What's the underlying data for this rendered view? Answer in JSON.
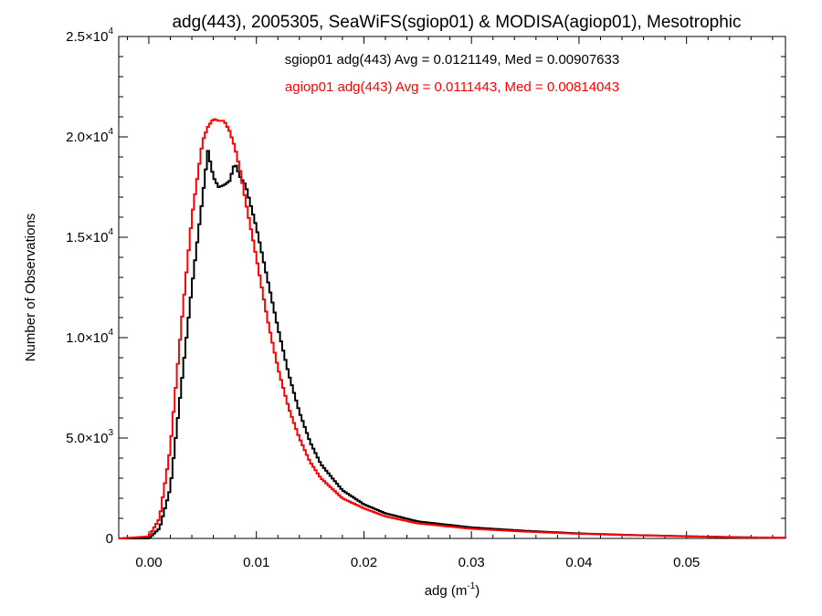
{
  "chart_data": {
    "type": "line",
    "style": "step-histogram",
    "title": "adg(443), 2005305, SeaWiFS(sgiop01) & MODISA(agiop01), Mesotrophic",
    "xlabel": "adg (m",
    "xlabel_exponent": "-1",
    "xlabel_suffix": ")",
    "ylabel": "Number of Observations",
    "xlim": [
      -0.0028,
      0.0592
    ],
    "ylim": [
      0,
      25000
    ],
    "grid": false,
    "x_ticks": [
      {
        "value": 0.0,
        "label": "0.00"
      },
      {
        "value": 0.01,
        "label": "0.01"
      },
      {
        "value": 0.02,
        "label": "0.02"
      },
      {
        "value": 0.03,
        "label": "0.03"
      },
      {
        "value": 0.04,
        "label": "0.04"
      },
      {
        "value": 0.05,
        "label": "0.05"
      }
    ],
    "y_ticks": [
      {
        "value": 0,
        "mantissa": "0",
        "exponent": ""
      },
      {
        "value": 5000,
        "mantissa": "5.0×10",
        "exponent": "3"
      },
      {
        "value": 10000,
        "mantissa": "1.0×10",
        "exponent": "4"
      },
      {
        "value": 15000,
        "mantissa": "1.5×10",
        "exponent": "4"
      },
      {
        "value": 20000,
        "mantissa": "2.0×10",
        "exponent": "4"
      },
      {
        "value": 25000,
        "mantissa": "2.5×10",
        "exponent": "4"
      }
    ],
    "legend_placement": "top-center",
    "series": [
      {
        "name": "sgiop01 adg(443) Avg = 0.0121149, Med = 0.00907633",
        "color": "#000000",
        "x": [
          -0.0028,
          0.0,
          0.001,
          0.002,
          0.003,
          0.004,
          0.005,
          0.0055,
          0.006,
          0.0065,
          0.007,
          0.0075,
          0.008,
          0.0085,
          0.009,
          0.01,
          0.011,
          0.012,
          0.013,
          0.014,
          0.015,
          0.016,
          0.018,
          0.02,
          0.022,
          0.025,
          0.03,
          0.035,
          0.04,
          0.045,
          0.05,
          0.055,
          0.0592
        ],
        "values": [
          0,
          0,
          500,
          2500,
          7500,
          12500,
          17000,
          19300,
          18000,
          17500,
          17600,
          17800,
          18700,
          18000,
          17600,
          15500,
          13000,
          10500,
          8200,
          6300,
          4800,
          3700,
          2400,
          1700,
          1250,
          850,
          550,
          380,
          250,
          170,
          110,
          60,
          30
        ]
      },
      {
        "name": "agiop01 adg(443) Avg = 0.0111443, Med = 0.00814043",
        "color": "#ff0000",
        "x": [
          -0.0028,
          0.0,
          0.001,
          0.002,
          0.003,
          0.004,
          0.005,
          0.0055,
          0.006,
          0.0065,
          0.007,
          0.0075,
          0.008,
          0.0085,
          0.009,
          0.01,
          0.011,
          0.012,
          0.013,
          0.014,
          0.015,
          0.016,
          0.018,
          0.02,
          0.022,
          0.025,
          0.03,
          0.035,
          0.04,
          0.045,
          0.05,
          0.055,
          0.0592
        ],
        "values": [
          0,
          100,
          1000,
          4500,
          10500,
          16000,
          19800,
          20500,
          20900,
          20800,
          20800,
          20300,
          19500,
          18300,
          16800,
          14000,
          11000,
          8500,
          6500,
          5000,
          3800,
          3000,
          2000,
          1500,
          1100,
          750,
          480,
          340,
          230,
          160,
          100,
          55,
          25
        ]
      }
    ]
  }
}
